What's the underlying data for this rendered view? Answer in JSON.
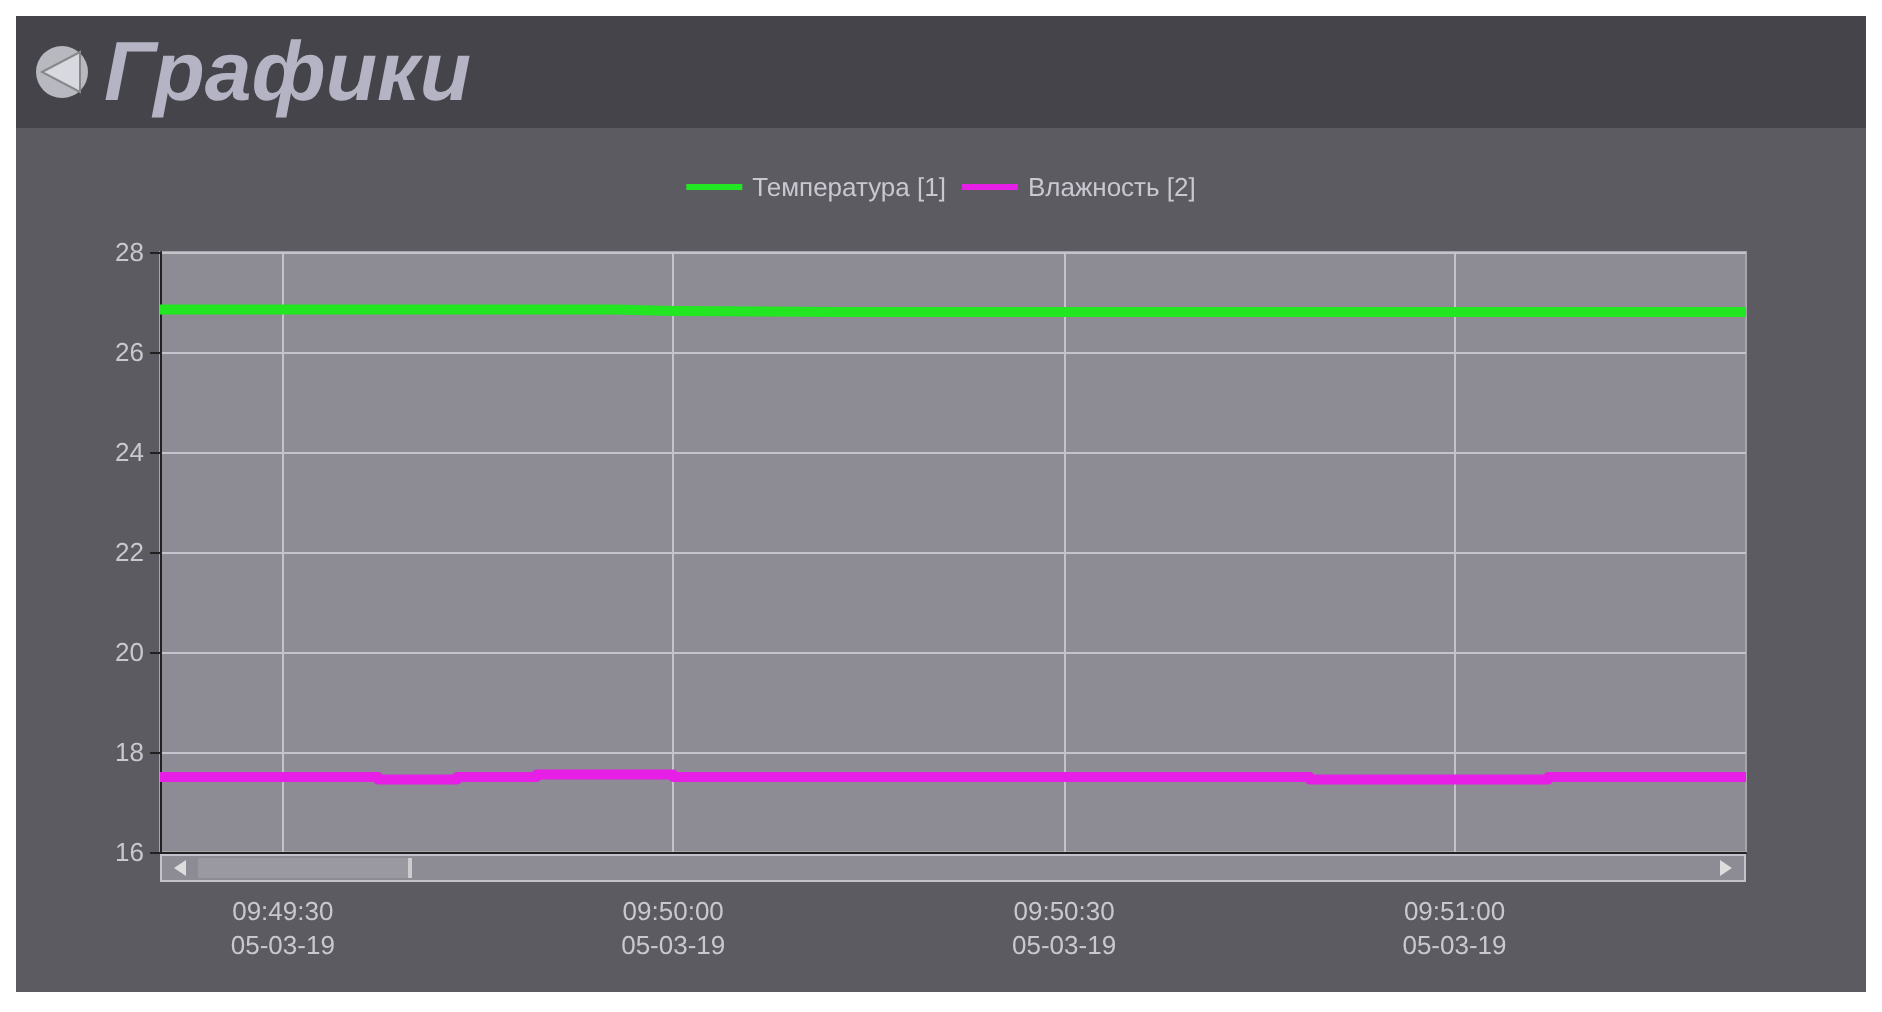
{
  "chart_data": {
    "type": "line",
    "title": "Графики",
    "series": [
      {
        "name": "Температура [1]",
        "color": "#22e622",
        "x": [
          9.82238,
          9.83211,
          9.83333,
          9.83676,
          9.85622
        ],
        "values": [
          26.85,
          26.85,
          26.82,
          26.8,
          26.8
        ]
      },
      {
        "name": "Влажность [2]",
        "type": "step",
        "color": "#e61ee6",
        "x": [
          9.82238,
          9.82703,
          9.82872,
          9.83042,
          9.83333,
          9.84691,
          9.852,
          9.85622
        ],
        "values": [
          17.5,
          17.45,
          17.5,
          17.55,
          17.5,
          17.45,
          17.5,
          17.5
        ]
      }
    ],
    "xlim": [
      9.82238,
      9.85622
    ],
    "xticks": [
      {
        "value": 9.825,
        "label": "09:49:30"
      },
      {
        "value": 9.83333,
        "label": "09:50:00"
      },
      {
        "value": 9.84167,
        "label": "09:50:30"
      },
      {
        "value": 9.85,
        "label": "09:51:00"
      }
    ],
    "annotations": [
      "05-03-19",
      "05-03-19",
      "05-03-19",
      "05-03-19"
    ],
    "ylim": [
      16,
      28
    ],
    "yticks": [
      16,
      18,
      20,
      22,
      24,
      26,
      28
    ],
    "grid": true,
    "legend": "top",
    "marker": "none",
    "line_style": "solid"
  }
}
